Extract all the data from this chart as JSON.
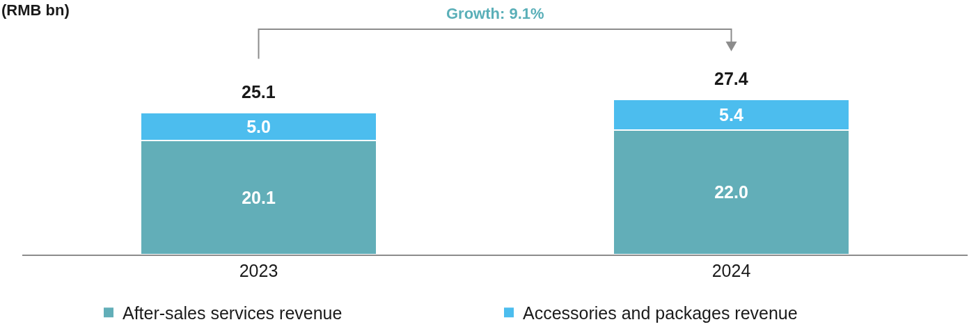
{
  "chart_data": {
    "type": "bar",
    "stacked": true,
    "categories": [
      "2023",
      "2024"
    ],
    "series": [
      {
        "name": "After-sales services revenue",
        "color": "#62aeb8",
        "values": [
          20.1,
          22.0
        ],
        "value_labels": [
          "20.1",
          "22.0"
        ]
      },
      {
        "name": "Accessories and packages revenue",
        "color": "#4cbdee",
        "values": [
          5.0,
          5.4
        ],
        "value_labels": [
          "5.0",
          "5.4"
        ]
      }
    ],
    "totals": [
      "25.1",
      "27.4"
    ],
    "annotations": [
      "(RMB bn)",
      "Growth: 9.1%"
    ],
    "legend": "bottom",
    "grid": false
  }
}
